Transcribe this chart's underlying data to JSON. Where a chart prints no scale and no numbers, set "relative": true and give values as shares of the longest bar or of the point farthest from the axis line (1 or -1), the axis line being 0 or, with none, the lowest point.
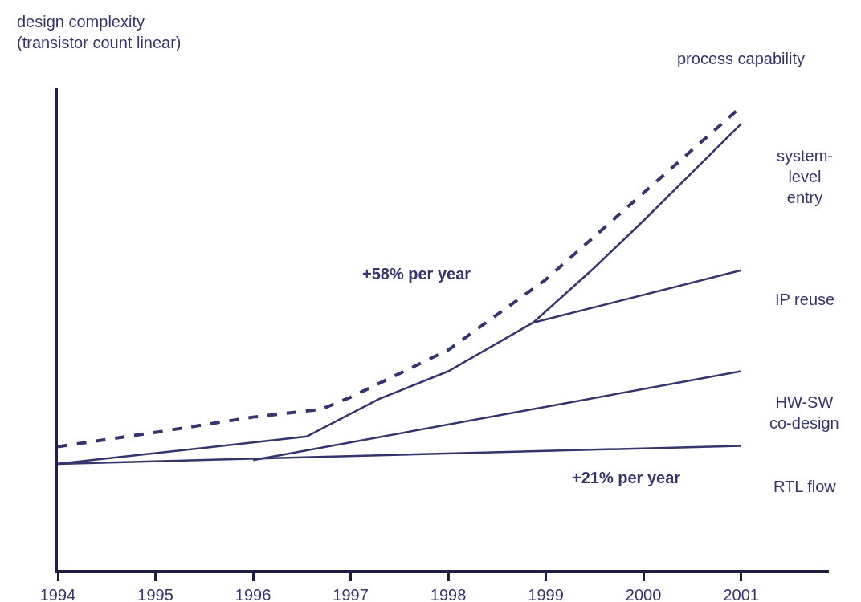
{
  "chart_data": {
    "type": "line",
    "relative": true,
    "ylabel": "design complexity\n(transistor count linear)",
    "xlim": [
      1994,
      2001.9
    ],
    "xticks": [
      1994,
      1995,
      1996,
      1997,
      1998,
      1999,
      2000,
      2001
    ],
    "grid": false,
    "legend": false,
    "marker": "none",
    "series": [
      {
        "name": "process capability",
        "color": "#35356e",
        "line_style": "dashed",
        "x": [
          1994,
          1995,
          1996,
          1996.7,
          1997,
          1998,
          1999,
          2000,
          2001
        ],
        "values": [
          0.266,
          0.297,
          0.33,
          0.347,
          0.373,
          0.475,
          0.627,
          0.814,
          1.0
        ]
      },
      {
        "color": "#35356e",
        "line_style": "solid",
        "x": [
          1994,
          1996.55,
          1997.29,
          1998,
          1998.87,
          1999.5,
          2000,
          2001
        ],
        "values": [
          0.229,
          0.288,
          0.369,
          0.429,
          0.534,
          0.653,
          0.754,
          0.963
        ]
      },
      {
        "color": "#35356e",
        "line_style": "solid",
        "x": [
          1998.87,
          2001
        ],
        "values": [
          0.534,
          0.647
        ]
      },
      {
        "color": "#35356e",
        "line_style": "solid",
        "x": [
          1996,
          2001
        ],
        "values": [
          0.237,
          0.429
        ]
      },
      {
        "color": "#35356e",
        "line_style": "solid",
        "x": [
          1994,
          2001
        ],
        "values": [
          0.229,
          0.268
        ]
      }
    ],
    "annotations": [
      "+58% per year",
      "+21% per year",
      "system-\nlevel\nentry",
      "IP reuse",
      "HW-SW\nco-design",
      "RTL flow"
    ]
  }
}
